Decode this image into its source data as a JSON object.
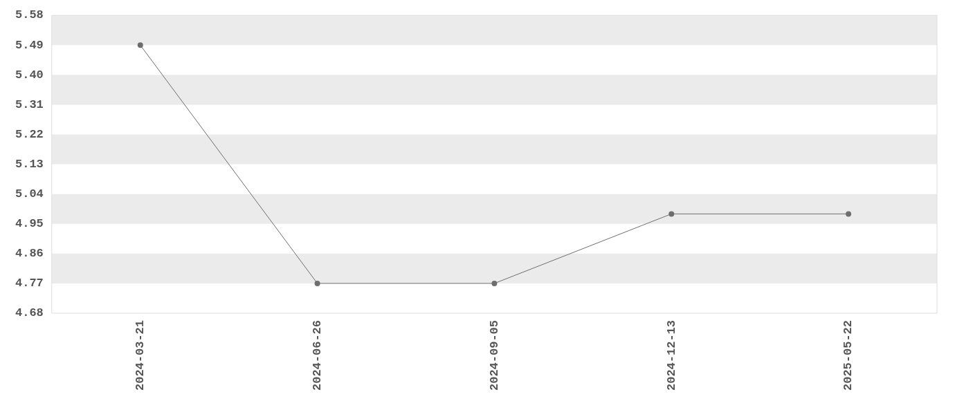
{
  "chart_data": {
    "type": "line",
    "categories": [
      "2024-03-21",
      "2024-06-26",
      "2024-09-05",
      "2024-12-13",
      "2025-05-22"
    ],
    "series": [
      {
        "color": "#6e6e6e",
        "values": [
          5.49,
          4.77,
          4.77,
          4.98,
          4.98
        ]
      }
    ],
    "ylim": [
      4.68,
      5.58
    ],
    "yticks": [
      4.68,
      4.77,
      4.86,
      4.95,
      5.04,
      5.13,
      5.22,
      5.31,
      {
        "value": 5.4,
        "label": "5.40"
      },
      5.49,
      5.58
    ],
    "bands": [
      {
        "axis": "y",
        "from": 5.49,
        "to": 5.58,
        "color": "#ebebeb"
      },
      {
        "axis": "y",
        "from": 5.31,
        "to": 5.4,
        "color": "#ebebeb"
      },
      {
        "axis": "y",
        "from": 5.13,
        "to": 5.22,
        "color": "#ebebeb"
      },
      {
        "axis": "y",
        "from": 4.95,
        "to": 5.04,
        "color": "#ebebeb"
      },
      {
        "axis": "y",
        "from": 4.77,
        "to": 4.86,
        "color": "#ebebeb"
      }
    ],
    "legend": false,
    "marker": "circle",
    "line_style": "solid"
  }
}
